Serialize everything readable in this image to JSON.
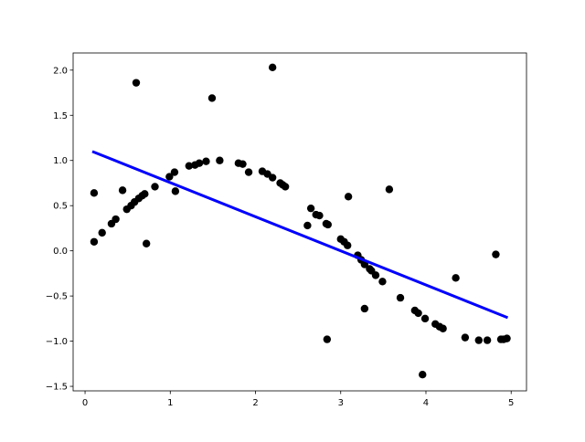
{
  "chart_data": {
    "type": "scatter",
    "xlim": [
      -0.14,
      5.18
    ],
    "ylim": [
      -1.55,
      2.19
    ],
    "xticks": [
      0,
      1,
      2,
      3,
      4,
      5
    ],
    "yticks": [
      {
        "value": -1.5,
        "label": "−1.5"
      },
      {
        "value": -1,
        "label": "−1.0"
      },
      {
        "value": -0.5,
        "label": "−0.5"
      },
      {
        "value": 0,
        "label": "0.0"
      },
      {
        "value": 0.5,
        "label": "0.5"
      },
      {
        "value": 1,
        "label": "1.0"
      },
      {
        "value": 1.5,
        "label": "1.5"
      },
      {
        "value": 2,
        "label": "2.0"
      }
    ],
    "series": [
      {
        "mode": "markers",
        "color": "#000000",
        "x": [
          0.106,
          0.106,
          0.2,
          0.31,
          0.36,
          0.44,
          0.49,
          0.54,
          0.58,
          0.6,
          0.63,
          0.67,
          0.7,
          0.72,
          0.82,
          0.99,
          1.05,
          1.06,
          1.22,
          1.29,
          1.34,
          1.42,
          1.49,
          1.58,
          1.8,
          1.85,
          1.92,
          2.08,
          2.14,
          2.2,
          2.2,
          2.29,
          2.32,
          2.35,
          2.61,
          2.65,
          2.71,
          2.75,
          2.83,
          2.85,
          2.84,
          3.0,
          3.04,
          3.08,
          3.09,
          3.2,
          3.24,
          3.28,
          3.28,
          3.34,
          3.36,
          3.41,
          3.49,
          3.57,
          3.7,
          3.87,
          3.91,
          3.96,
          3.99,
          4.11,
          4.16,
          4.2,
          4.35,
          4.46,
          4.62,
          4.72,
          4.82,
          4.88,
          4.91,
          4.95
        ],
        "values": [
          0.64,
          0.1,
          0.2,
          0.3,
          0.35,
          0.67,
          0.46,
          0.5,
          0.54,
          1.86,
          0.58,
          0.61,
          0.63,
          0.08,
          0.71,
          0.82,
          0.87,
          0.66,
          0.94,
          0.95,
          0.97,
          0.99,
          1.69,
          1.0,
          0.97,
          0.96,
          0.87,
          0.88,
          0.85,
          2.03,
          0.81,
          0.75,
          0.73,
          0.71,
          0.28,
          0.47,
          0.4,
          0.39,
          0.3,
          0.29,
          -0.98,
          0.13,
          0.1,
          0.06,
          0.6,
          -0.05,
          -0.1,
          -0.64,
          -0.15,
          -0.2,
          -0.22,
          -0.27,
          -0.34,
          0.68,
          -0.52,
          -0.66,
          -0.69,
          -1.37,
          -0.75,
          -0.81,
          -0.84,
          -0.86,
          -0.3,
          -0.96,
          -0.99,
          -0.99,
          -0.04,
          -0.98,
          -0.98,
          -0.97
        ]
      },
      {
        "mode": "line",
        "color": "#0000ff",
        "x": [
          0.085,
          4.96
        ],
        "values": [
          1.1,
          -0.74
        ]
      }
    ]
  }
}
